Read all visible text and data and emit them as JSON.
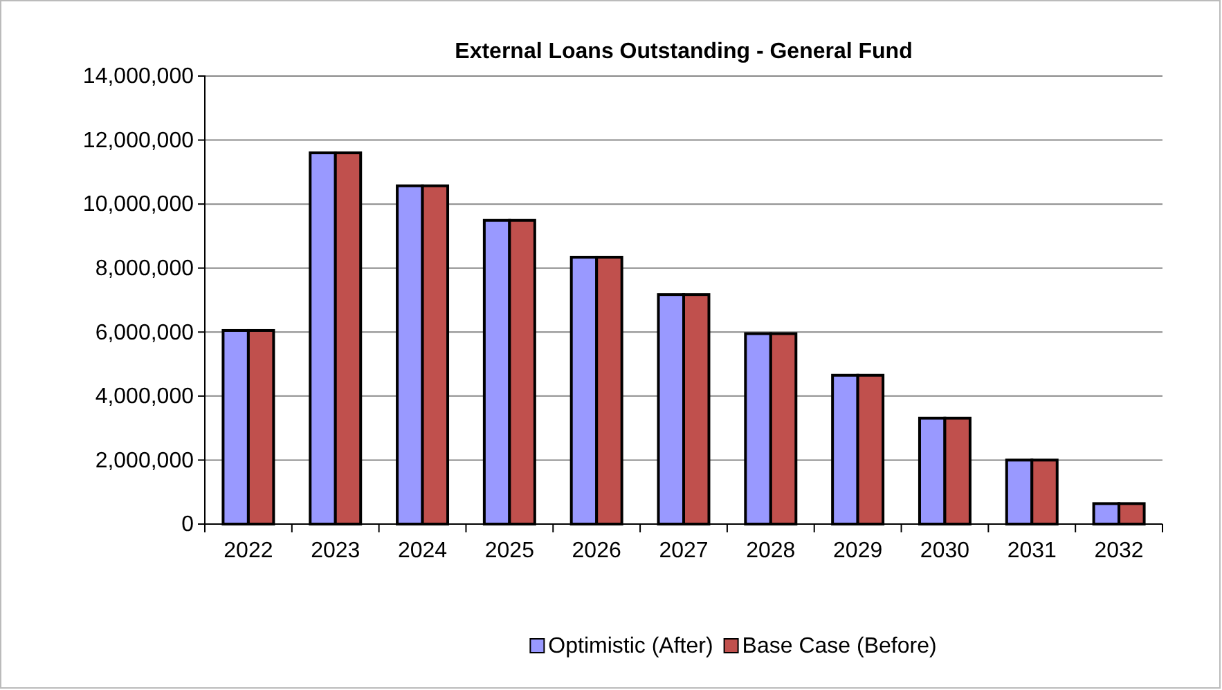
{
  "chart_data": {
    "type": "bar",
    "title": "External Loans Outstanding - General Fund",
    "categories": [
      "2022",
      "2023",
      "2024",
      "2025",
      "2026",
      "2027",
      "2028",
      "2029",
      "2030",
      "2031",
      "2032"
    ],
    "series": [
      {
        "name": "Optimistic (After)",
        "color": "#9999ff",
        "values": [
          6050000,
          11600000,
          10570000,
          9490000,
          8340000,
          7170000,
          5950000,
          4650000,
          3310000,
          2000000,
          640000
        ]
      },
      {
        "name": "Base Case (Before)",
        "color": "#c0504d",
        "values": [
          6050000,
          11600000,
          10570000,
          9490000,
          8340000,
          7170000,
          5950000,
          4650000,
          3310000,
          2000000,
          640000
        ]
      }
    ],
    "ylim": [
      0,
      14000000
    ],
    "yticks": [
      {
        "value": 0,
        "label": "0"
      },
      {
        "value": 2000000,
        "label": "2,000,000"
      },
      {
        "value": 4000000,
        "label": "4,000,000"
      },
      {
        "value": 6000000,
        "label": "6,000,000"
      },
      {
        "value": 8000000,
        "label": "8,000,000"
      },
      {
        "value": 10000000,
        "label": "10,000,000"
      },
      {
        "value": 12000000,
        "label": "12,000,000"
      },
      {
        "value": 14000000,
        "label": "14,000,000"
      }
    ],
    "grid": "y",
    "legend": "bottom"
  }
}
